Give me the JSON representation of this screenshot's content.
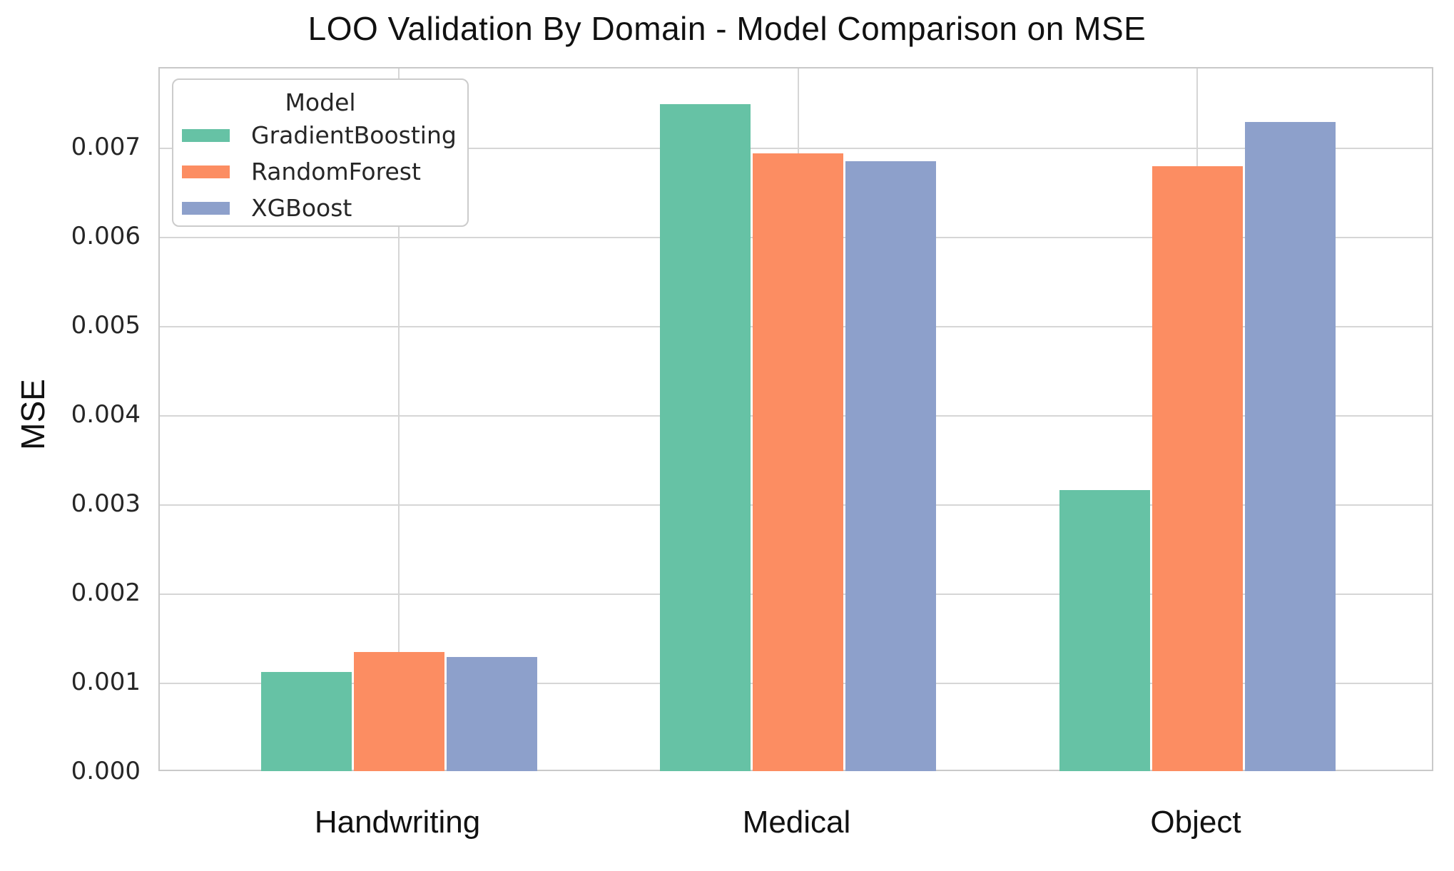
{
  "chart_data": {
    "type": "bar",
    "title": "LOO Validation By Domain - Model Comparison on MSE",
    "xlabel": "",
    "ylabel": "MSE",
    "categories": [
      "Handwriting",
      "Medical",
      "Object"
    ],
    "series": [
      {
        "name": "GradientBoosting",
        "color": "#66c2a5",
        "values": [
          0.00113,
          0.0075,
          0.00317
        ]
      },
      {
        "name": "RandomForest",
        "color": "#fc8d62",
        "values": [
          0.00135,
          0.00695,
          0.0068
        ]
      },
      {
        "name": "XGBoost",
        "color": "#8da0cb",
        "values": [
          0.0013,
          0.00686,
          0.0073
        ]
      }
    ],
    "ytick_labels": [
      "0.000",
      "0.001",
      "0.002",
      "0.003",
      "0.004",
      "0.005",
      "0.006",
      "0.007"
    ],
    "ytick_values": [
      0,
      0.001,
      0.002,
      0.003,
      0.004,
      0.005,
      0.006,
      0.007
    ],
    "ylim": [
      0,
      0.0079
    ],
    "grid": true,
    "legend": {
      "title": "Model",
      "position": "upper left"
    }
  }
}
